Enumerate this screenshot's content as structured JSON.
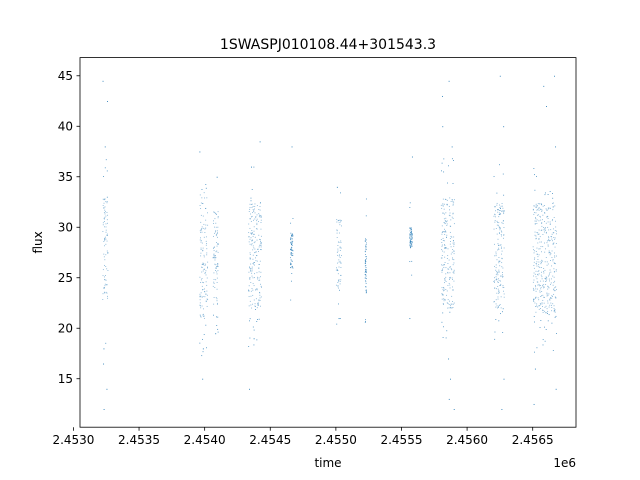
{
  "chart_data": {
    "type": "scatter",
    "title": "1SWASPJ010108.44+301543.3",
    "xlabel": "time",
    "ylabel": "flux",
    "x_offset_label": "1e6",
    "xlim": [
      2.45305,
      2.45683
    ],
    "ylim": [
      10.2,
      46.8
    ],
    "x_ticks": [
      {
        "value": 2.453,
        "label": "2.4530"
      },
      {
        "value": 2.4535,
        "label": "2.4535"
      },
      {
        "value": 2.454,
        "label": "2.4540"
      },
      {
        "value": 2.4545,
        "label": "2.4545"
      },
      {
        "value": 2.455,
        "label": "2.4550"
      },
      {
        "value": 2.4555,
        "label": "2.4555"
      },
      {
        "value": 2.456,
        "label": "2.4560"
      },
      {
        "value": 2.4565,
        "label": "2.4565"
      }
    ],
    "y_ticks": [
      {
        "value": 15,
        "label": "15"
      },
      {
        "value": 20,
        "label": "20"
      },
      {
        "value": 25,
        "label": "25"
      },
      {
        "value": 30,
        "label": "30"
      },
      {
        "value": 35,
        "label": "35"
      },
      {
        "value": 40,
        "label": "40"
      },
      {
        "value": 45,
        "label": "45"
      }
    ],
    "grid": false,
    "marker_color": "#1f77b4",
    "series": [
      {
        "segments": [
          {
            "x_start": 2.45322,
            "x_end": 2.45326,
            "y_low": 22.0,
            "y_high": 33.0,
            "spread": 0.6,
            "extremes": [
              44.5,
              42.5,
              38.0,
              14.0,
              12.0,
              16.5,
              18.0
            ]
          },
          {
            "x_start": 2.45396,
            "x_end": 2.45402,
            "y_low": 21.0,
            "y_high": 33.5,
            "spread": 0.5,
            "extremes": [
              37.5,
              15.0,
              18.0
            ]
          },
          {
            "x_start": 2.45406,
            "x_end": 2.4541,
            "y_low": 22.0,
            "y_high": 32.0,
            "spread": 0.6,
            "extremes": [
              35.0,
              19.5
            ]
          },
          {
            "x_start": 2.45433,
            "x_end": 2.45443,
            "y_low": 22.0,
            "y_high": 32.5,
            "spread": 0.6,
            "extremes": [
              38.5,
              36.0,
              14.0,
              19.0
            ]
          },
          {
            "x_start": 2.45465,
            "x_end": 2.45467,
            "y_low": 26.0,
            "y_high": 29.5,
            "spread": 0.2,
            "extremes": [
              38.0
            ]
          },
          {
            "x_start": 2.455,
            "x_end": 2.45504,
            "y_low": 24.0,
            "y_high": 31.0,
            "spread": 0.2,
            "extremes": [
              34.0,
              21.0
            ]
          },
          {
            "x_start": 2.45522,
            "x_end": 2.45523,
            "y_low": 23.5,
            "y_high": 29.0,
            "spread": 0.15,
            "extremes": []
          },
          {
            "x_start": 2.45556,
            "x_end": 2.45558,
            "y_low": 28.0,
            "y_high": 30.0,
            "spread": 0.1,
            "extremes": [
              37.0,
              21.0
            ]
          },
          {
            "x_start": 2.4558,
            "x_end": 2.4559,
            "y_low": 22.0,
            "y_high": 33.0,
            "spread": 0.7,
            "extremes": [
              44.5,
              43.0,
              40.0,
              38.0,
              12.0,
              13.0,
              15.0,
              17.0
            ]
          },
          {
            "x_start": 2.4562,
            "x_end": 2.45628,
            "y_low": 22.0,
            "y_high": 32.5,
            "spread": 0.6,
            "extremes": [
              45.0,
              40.0,
              12.0,
              15.0
            ]
          },
          {
            "x_start": 2.4565,
            "x_end": 2.45668,
            "y_low": 21.5,
            "y_high": 32.5,
            "spread": 0.7,
            "extremes": [
              45.0,
              44.0,
              42.0,
              38.0,
              12.5,
              14.0,
              16.0
            ]
          }
        ]
      }
    ]
  }
}
